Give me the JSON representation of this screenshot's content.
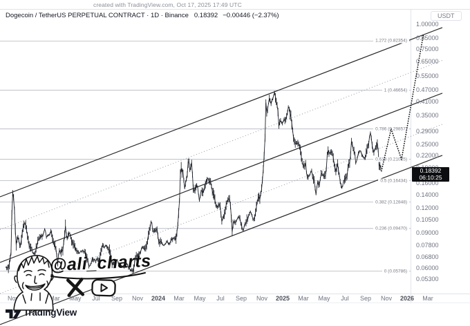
{
  "attribution": "created with TradingView.com, Oct 17, 2025 17:49 UTC",
  "titlebar": {
    "symbol_title": "Dogecoin / TetherUS PERPETUAL CONTRACT · 1D · Binance",
    "last_price": "0.18392",
    "change": "−0.00446 (−2.37%)"
  },
  "price_axis": {
    "unit": "USDT",
    "labels": [
      "1.00000",
      "0.85000",
      "0.75000",
      "0.65000",
      "0.55000",
      "0.47000",
      "0.41000",
      "0.35000",
      "0.29000",
      "0.25000",
      "0.22000",
      "0.19000",
      "0.16000",
      "0.14000",
      "0.12000",
      "0.10500",
      "0.09000",
      "0.07800",
      "0.06800",
      "0.06000",
      "0.05300"
    ],
    "badge": {
      "price": "0.18392",
      "countdown": "06:10:25"
    }
  },
  "time_axis": {
    "labels": [
      {
        "text": "Nov",
        "bold": false
      },
      {
        "text": "2023",
        "bold": true
      },
      {
        "text": "Mar",
        "bold": false
      },
      {
        "text": "May",
        "bold": false
      },
      {
        "text": "Jul",
        "bold": false
      },
      {
        "text": "Sep",
        "bold": false
      },
      {
        "text": "Nov",
        "bold": false
      },
      {
        "text": "2024",
        "bold": true
      },
      {
        "text": "Mar",
        "bold": false
      },
      {
        "text": "May",
        "bold": false
      },
      {
        "text": "Jul",
        "bold": false
      },
      {
        "text": "Sep",
        "bold": false
      },
      {
        "text": "Nov",
        "bold": false
      },
      {
        "text": "2025",
        "bold": true
      },
      {
        "text": "Mar",
        "bold": false
      },
      {
        "text": "May",
        "bold": false
      },
      {
        "text": "Jul",
        "bold": false
      },
      {
        "text": "Sep",
        "bold": false
      },
      {
        "text": "Nov",
        "bold": false
      },
      {
        "text": "2026",
        "bold": true
      },
      {
        "text": "Mar",
        "bold": false
      }
    ]
  },
  "watermark": {
    "handle": "@ali_charts"
  },
  "footer": {
    "brand": "TradingView"
  },
  "chart_data": {
    "type": "candlestick",
    "title": "Dogecoin / TetherUS PERPETUAL CONTRACT 1D Binance",
    "scale": "log",
    "ylim": [
      0.05,
      1.05
    ],
    "x_range": [
      "2022-10-10",
      "2026-04-01"
    ],
    "fib_levels": [
      {
        "label": "1.272 (0.82354)",
        "price": 0.82354
      },
      {
        "label": "1 (0.46654)",
        "price": 0.46654
      },
      {
        "label": "0.786 (0.29857)",
        "price": 0.29857
      },
      {
        "label": "0.618 (0.21025)",
        "price": 0.21025
      },
      {
        "label": "0.5 (0.16434)",
        "price": 0.16434
      },
      {
        "label": "0.382 (0.12848)",
        "price": 0.12848
      },
      {
        "label": "0.236 (0.09470)",
        "price": 0.0947
      },
      {
        "label": "0 (0.05786)",
        "price": 0.05786
      }
    ],
    "channel": [
      {
        "intercept": 285,
        "slope": -0.383,
        "style": "solid"
      },
      {
        "intercept": 332.5,
        "slope": -0.383,
        "style": "dotted"
      },
      {
        "intercept": 380,
        "slope": -0.383,
        "style": "solid"
      },
      {
        "intercept": 425,
        "slope": -0.383,
        "style": "dotted"
      },
      {
        "intercept": 470,
        "slope": -0.383,
        "style": "solid"
      }
    ],
    "projection": [
      [
        "2025-10-17",
        0.18392
      ],
      [
        "2025-11-15",
        0.29857
      ],
      [
        "2025-12-15",
        0.21025
      ],
      [
        "2026-02-18",
        0.88
      ]
    ],
    "price_path": [
      [
        "2022-10-10",
        0.06
      ],
      [
        "2022-10-18",
        0.0598
      ],
      [
        "2022-10-25",
        0.0705
      ],
      [
        "2022-10-28",
        0.116
      ],
      [
        "2022-11-01",
        0.158
      ],
      [
        "2022-11-03",
        0.123
      ],
      [
        "2022-11-06",
        0.113
      ],
      [
        "2022-11-09",
        0.075
      ],
      [
        "2022-11-14",
        0.088
      ],
      [
        "2022-11-22",
        0.076
      ],
      [
        "2022-11-30",
        0.096
      ],
      [
        "2022-12-06",
        0.102
      ],
      [
        "2022-12-12",
        0.09
      ],
      [
        "2022-12-17",
        0.078
      ],
      [
        "2022-12-25",
        0.0755
      ],
      [
        "2022-12-30",
        0.07
      ],
      [
        "2023-01-05",
        0.072
      ],
      [
        "2023-01-14",
        0.084
      ],
      [
        "2023-01-21",
        0.086
      ],
      [
        "2023-01-29",
        0.088
      ],
      [
        "2023-02-02",
        0.094
      ],
      [
        "2023-02-08",
        0.086
      ],
      [
        "2023-02-16",
        0.0885
      ],
      [
        "2023-02-21",
        0.092
      ],
      [
        "2023-02-27",
        0.081
      ],
      [
        "2023-03-05",
        0.075
      ],
      [
        "2023-03-10",
        0.063
      ],
      [
        "2023-03-14",
        0.074
      ],
      [
        "2023-03-19",
        0.072
      ],
      [
        "2023-03-26",
        0.0745
      ],
      [
        "2023-04-03",
        0.099
      ],
      [
        "2023-04-06",
        0.083
      ],
      [
        "2023-04-14",
        0.092
      ],
      [
        "2023-04-20",
        0.082
      ],
      [
        "2023-04-27",
        0.079
      ],
      [
        "2023-05-06",
        0.072
      ],
      [
        "2023-05-12",
        0.0715
      ],
      [
        "2023-05-21",
        0.073
      ],
      [
        "2023-05-29",
        0.072
      ],
      [
        "2023-06-06",
        0.067
      ],
      [
        "2023-06-10",
        0.061
      ],
      [
        "2023-06-16",
        0.062
      ],
      [
        "2023-06-21",
        0.067
      ],
      [
        "2023-06-30",
        0.065
      ],
      [
        "2023-07-04",
        0.067
      ],
      [
        "2023-07-10",
        0.0645
      ],
      [
        "2023-07-14",
        0.072
      ],
      [
        "2023-07-21",
        0.079
      ],
      [
        "2023-07-24",
        0.076
      ],
      [
        "2023-07-31",
        0.078
      ],
      [
        "2023-08-06",
        0.0755
      ],
      [
        "2023-08-14",
        0.07
      ],
      [
        "2023-08-17",
        0.063
      ],
      [
        "2023-08-24",
        0.064
      ],
      [
        "2023-08-31",
        0.066
      ],
      [
        "2023-09-07",
        0.063
      ],
      [
        "2023-09-15",
        0.0615
      ],
      [
        "2023-09-23",
        0.061
      ],
      [
        "2023-09-30",
        0.063
      ],
      [
        "2023-10-09",
        0.059
      ],
      [
        "2023-10-19",
        0.0575
      ],
      [
        "2023-10-25",
        0.068
      ],
      [
        "2023-11-02",
        0.069
      ],
      [
        "2023-11-10",
        0.072
      ],
      [
        "2023-11-16",
        0.077
      ],
      [
        "2023-11-24",
        0.074
      ],
      [
        "2023-12-01",
        0.084
      ],
      [
        "2023-12-08",
        0.098
      ],
      [
        "2023-12-11",
        0.105
      ],
      [
        "2023-12-15",
        0.092
      ],
      [
        "2023-12-20",
        0.093
      ],
      [
        "2023-12-28",
        0.094
      ],
      [
        "2024-01-03",
        0.08
      ],
      [
        "2024-01-10",
        0.081
      ],
      [
        "2024-01-18",
        0.078
      ],
      [
        "2024-01-26",
        0.081
      ],
      [
        "2024-02-03",
        0.079
      ],
      [
        "2024-02-10",
        0.083
      ],
      [
        "2024-02-15",
        0.085
      ],
      [
        "2024-02-23",
        0.084
      ],
      [
        "2024-02-28",
        0.099
      ],
      [
        "2024-03-03",
        0.135
      ],
      [
        "2024-03-06",
        0.199
      ],
      [
        "2024-03-09",
        0.18
      ],
      [
        "2024-03-13",
        0.188
      ],
      [
        "2024-03-17",
        0.148
      ],
      [
        "2024-03-21",
        0.164
      ],
      [
        "2024-03-26",
        0.179
      ],
      [
        "2024-03-29",
        0.22
      ],
      [
        "2024-04-02",
        0.185
      ],
      [
        "2024-04-08",
        0.203
      ],
      [
        "2024-04-13",
        0.145
      ],
      [
        "2024-04-19",
        0.152
      ],
      [
        "2024-04-24",
        0.156
      ],
      [
        "2024-04-30",
        0.131
      ],
      [
        "2024-05-06",
        0.15
      ],
      [
        "2024-05-11",
        0.143
      ],
      [
        "2024-05-16",
        0.153
      ],
      [
        "2024-05-22",
        0.169
      ],
      [
        "2024-05-27",
        0.166
      ],
      [
        "2024-06-03",
        0.16
      ],
      [
        "2024-06-08",
        0.142
      ],
      [
        "2024-06-13",
        0.14
      ],
      [
        "2024-06-18",
        0.121
      ],
      [
        "2024-06-24",
        0.123
      ],
      [
        "2024-06-30",
        0.124
      ],
      [
        "2024-07-05",
        0.102
      ],
      [
        "2024-07-09",
        0.108
      ],
      [
        "2024-07-14",
        0.111
      ],
      [
        "2024-07-17",
        0.124
      ],
      [
        "2024-07-22",
        0.131
      ],
      [
        "2024-07-29",
        0.135
      ],
      [
        "2024-08-05",
        0.09
      ],
      [
        "2024-08-09",
        0.104
      ],
      [
        "2024-08-14",
        0.101
      ],
      [
        "2024-08-20",
        0.105
      ],
      [
        "2024-08-25",
        0.11
      ],
      [
        "2024-08-31",
        0.1
      ],
      [
        "2024-09-06",
        0.092
      ],
      [
        "2024-09-12",
        0.1
      ],
      [
        "2024-09-18",
        0.104
      ],
      [
        "2024-09-23",
        0.109
      ],
      [
        "2024-09-28",
        0.117
      ],
      [
        "2024-10-04",
        0.106
      ],
      [
        "2024-10-10",
        0.107
      ],
      [
        "2024-10-16",
        0.123
      ],
      [
        "2024-10-21",
        0.139
      ],
      [
        "2024-10-26",
        0.133
      ],
      [
        "2024-11-01",
        0.155
      ],
      [
        "2024-11-06",
        0.195
      ],
      [
        "2024-11-10",
        0.266
      ],
      [
        "2024-11-12",
        0.41
      ],
      [
        "2024-11-15",
        0.365
      ],
      [
        "2024-11-19",
        0.385
      ],
      [
        "2024-11-23",
        0.43
      ],
      [
        "2024-11-27",
        0.4
      ],
      [
        "2024-12-02",
        0.425
      ],
      [
        "2024-12-08",
        0.455
      ],
      [
        "2024-12-12",
        0.405
      ],
      [
        "2024-12-17",
        0.385
      ],
      [
        "2024-12-20",
        0.31
      ],
      [
        "2024-12-25",
        0.33
      ],
      [
        "2024-12-31",
        0.315
      ],
      [
        "2025-01-05",
        0.335
      ],
      [
        "2025-01-10",
        0.33
      ],
      [
        "2025-01-14",
        0.35
      ],
      [
        "2025-01-18",
        0.39
      ],
      [
        "2025-01-23",
        0.355
      ],
      [
        "2025-01-28",
        0.32
      ],
      [
        "2025-02-02",
        0.27
      ],
      [
        "2025-02-06",
        0.255
      ],
      [
        "2025-02-12",
        0.25
      ],
      [
        "2025-02-17",
        0.254
      ],
      [
        "2025-02-22",
        0.238
      ],
      [
        "2025-02-27",
        0.203
      ],
      [
        "2025-03-04",
        0.19
      ],
      [
        "2025-03-08",
        0.203
      ],
      [
        "2025-03-11",
        0.168
      ],
      [
        "2025-03-15",
        0.173
      ],
      [
        "2025-03-19",
        0.172
      ],
      [
        "2025-03-24",
        0.188
      ],
      [
        "2025-03-29",
        0.168
      ],
      [
        "2025-04-03",
        0.163
      ],
      [
        "2025-04-07",
        0.14
      ],
      [
        "2025-04-12",
        0.162
      ],
      [
        "2025-04-17",
        0.155
      ],
      [
        "2025-04-23",
        0.18
      ],
      [
        "2025-04-28",
        0.176
      ],
      [
        "2025-05-04",
        0.17
      ],
      [
        "2025-05-08",
        0.19
      ],
      [
        "2025-05-11",
        0.24
      ],
      [
        "2025-05-16",
        0.22
      ],
      [
        "2025-05-21",
        0.23
      ],
      [
        "2025-05-26",
        0.225
      ],
      [
        "2025-05-31",
        0.195
      ],
      [
        "2025-06-05",
        0.183
      ],
      [
        "2025-06-10",
        0.198
      ],
      [
        "2025-06-15",
        0.175
      ],
      [
        "2025-06-20",
        0.155
      ],
      [
        "2025-06-22",
        0.148
      ],
      [
        "2025-06-27",
        0.163
      ],
      [
        "2025-07-02",
        0.168
      ],
      [
        "2025-07-07",
        0.17
      ],
      [
        "2025-07-11",
        0.198
      ],
      [
        "2025-07-16",
        0.205
      ],
      [
        "2025-07-21",
        0.268
      ],
      [
        "2025-07-25",
        0.235
      ],
      [
        "2025-07-30",
        0.228
      ],
      [
        "2025-08-02",
        0.2
      ],
      [
        "2025-08-07",
        0.215
      ],
      [
        "2025-08-12",
        0.23
      ],
      [
        "2025-08-17",
        0.233
      ],
      [
        "2025-08-22",
        0.22
      ],
      [
        "2025-08-27",
        0.215
      ],
      [
        "2025-09-01",
        0.214
      ],
      [
        "2025-09-05",
        0.24
      ],
      [
        "2025-09-10",
        0.255
      ],
      [
        "2025-09-14",
        0.29
      ],
      [
        "2025-09-18",
        0.27
      ],
      [
        "2025-09-22",
        0.235
      ],
      [
        "2025-09-26",
        0.23
      ],
      [
        "2025-10-01",
        0.245
      ],
      [
        "2025-10-06",
        0.255
      ],
      [
        "2025-10-10",
        0.195
      ],
      [
        "2025-10-13",
        0.2
      ],
      [
        "2025-10-16",
        0.188
      ],
      [
        "2025-10-17",
        0.18392
      ]
    ]
  }
}
